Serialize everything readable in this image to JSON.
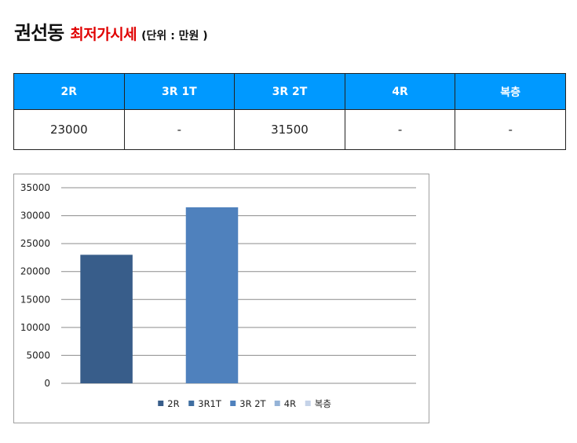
{
  "header": {
    "title": "권선동",
    "subtitle": "최저가시세",
    "unit": "(단위 : 만원 )"
  },
  "price_table": {
    "columns": [
      "2R",
      "3R 1T",
      "3R 2T",
      "4R",
      "복층"
    ],
    "values": [
      "23000",
      "-",
      "31500",
      "-",
      "-"
    ]
  },
  "colors": {
    "header_bg": "#0099ff",
    "title_accent": "#e00000"
  },
  "chart_data": {
    "type": "bar",
    "title": "",
    "xlabel": "",
    "ylabel": "",
    "ylim": [
      0,
      35000
    ],
    "yticks": [
      0,
      5000,
      10000,
      15000,
      20000,
      25000,
      30000,
      35000
    ],
    "grid": true,
    "legend_position": "bottom",
    "series": [
      {
        "name": "2R",
        "value": 23000,
        "color": "#385d8a"
      },
      {
        "name": "3R1T",
        "value": null,
        "color": "#3f6ea1"
      },
      {
        "name": "3R 2T",
        "value": 31500,
        "color": "#4f81bd"
      },
      {
        "name": "4R",
        "value": null,
        "color": "#95b3d7"
      },
      {
        "name": "복층",
        "value": null,
        "color": "#c5d3e8"
      }
    ]
  }
}
